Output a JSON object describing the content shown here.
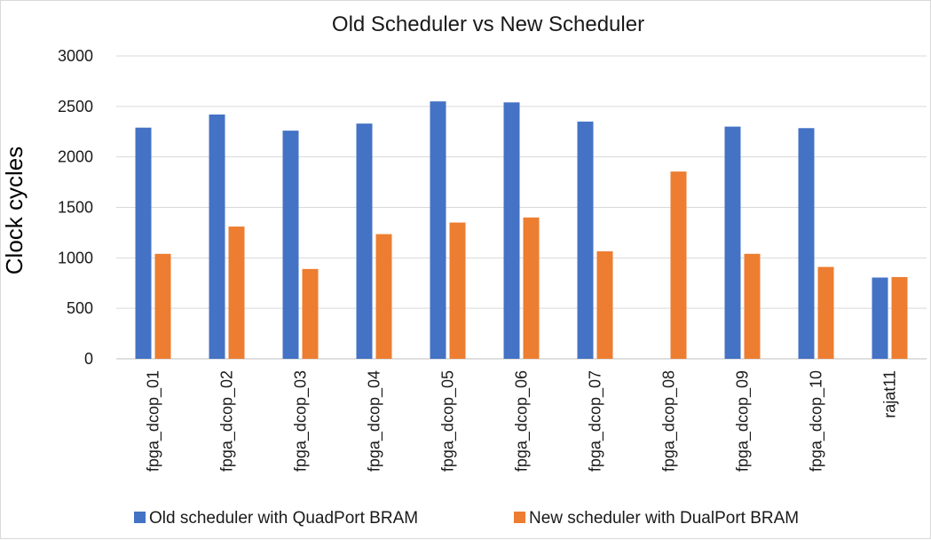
{
  "chart_data": {
    "type": "bar",
    "title": "Old Scheduler vs New Scheduler",
    "ylabel": "Clock cycles",
    "xlabel": "",
    "ylim": [
      0,
      3000
    ],
    "yticks": [
      0,
      500,
      1000,
      1500,
      2000,
      2500,
      3000
    ],
    "grid": true,
    "legend_position": "bottom",
    "categories": [
      "fpga_dcop_01",
      "fpga_dcop_02",
      "fpga_dcop_03",
      "fpga_dcop_04",
      "fpga_dcop_05",
      "fpga_dcop_06",
      "fpga_dcop_07",
      "fpga_dcop_08",
      "fpga_dcop_09",
      "fpga_dcop_10",
      "rajat11"
    ],
    "series": [
      {
        "name": "Old scheduler with QuadPort BRAM",
        "color": "#4472c4",
        "values": [
          2290,
          2420,
          2260,
          2330,
          2550,
          2540,
          2350,
          0,
          2300,
          2285,
          805
        ]
      },
      {
        "name": "New scheduler with DualPort BRAM",
        "color": "#ed7d31",
        "values": [
          1040,
          1310,
          890,
          1235,
          1350,
          1400,
          1065,
          1855,
          1040,
          910,
          810
        ]
      }
    ]
  }
}
